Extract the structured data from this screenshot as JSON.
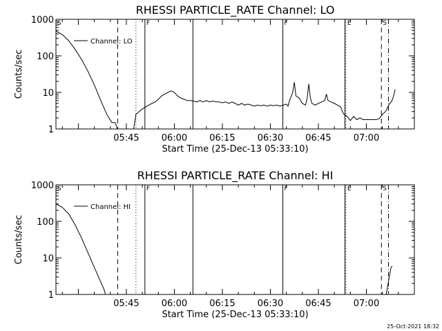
{
  "footer": {
    "timestamp": "25-Oct-2021 18:32"
  },
  "chart_data": [
    {
      "type": "line",
      "title": "RHESSI PARTICLE_RATE Channel: LO",
      "xlabel": "Start Time (25-Dec-13 05:33:10)",
      "ylabel": "Counts/sec",
      "yscale": "log",
      "xlim_min": [
        -10,
        102
      ],
      "ylim": [
        1,
        1000
      ],
      "xticks": [
        {
          "v": 12,
          "label": "05:45"
        },
        {
          "v": 27,
          "label": "06:00"
        },
        {
          "v": 42,
          "label": "06:15"
        },
        {
          "v": 57,
          "label": "06:30"
        },
        {
          "v": 72,
          "label": "06:45"
        },
        {
          "v": 87,
          "label": "07:00"
        }
      ],
      "yticks": [
        {
          "v": 1,
          "label": "1"
        },
        {
          "v": 10,
          "label": "10"
        },
        {
          "v": 100,
          "label": "100"
        },
        {
          "v": 1000,
          "label": "1000"
        }
      ],
      "legend": "top-left",
      "series": [
        {
          "name": "Channel: LO",
          "segments": [
            [
              [
                -10,
                480
              ],
              [
                -8,
                380
              ],
              [
                -6,
                260
              ],
              [
                -4,
                150
              ],
              [
                -2,
                80
              ],
              [
                0,
                38
              ],
              [
                2,
                16
              ],
              [
                4,
                6
              ],
              [
                6,
                2.4
              ],
              [
                7.5,
                1.5
              ],
              [
                8.5,
                1.5
              ],
              [
                9.2,
                1
              ]
            ],
            [
              [
                14.3,
                1
              ],
              [
                15,
                2.5
              ],
              [
                16,
                3
              ],
              [
                17,
                3.5
              ],
              [
                18,
                4
              ],
              [
                19,
                4.5
              ],
              [
                20,
                5
              ],
              [
                21,
                5.5
              ],
              [
                22,
                6.5
              ],
              [
                23,
                8
              ],
              [
                24,
                9
              ],
              [
                25,
                10
              ],
              [
                26,
                11
              ],
              [
                27,
                10
              ],
              [
                28,
                8
              ],
              [
                29,
                7
              ],
              [
                30,
                6.5
              ],
              [
                31,
                6
              ],
              [
                32,
                6
              ],
              [
                33,
                5.8
              ],
              [
                34,
                5.5
              ],
              [
                35,
                6
              ],
              [
                36,
                5.5
              ],
              [
                37,
                6
              ],
              [
                38,
                5.5
              ],
              [
                39,
                5.8
              ],
              [
                40,
                5.5
              ],
              [
                41,
                5.5
              ],
              [
                42,
                5.2
              ],
              [
                43,
                5.5
              ],
              [
                44,
                5
              ],
              [
                45,
                5.5
              ],
              [
                46,
                5
              ],
              [
                47,
                4.5
              ],
              [
                48,
                5
              ],
              [
                49,
                4.5
              ],
              [
                50,
                4.8
              ],
              [
                51,
                4.5
              ],
              [
                52,
                4.2
              ],
              [
                53,
                4.5
              ],
              [
                54,
                4.3
              ],
              [
                55,
                4.5
              ],
              [
                56,
                4.2
              ],
              [
                57,
                4.5
              ],
              [
                58,
                4.3
              ],
              [
                59,
                4.5
              ],
              [
                60,
                4.2
              ],
              [
                61,
                4.5
              ],
              [
                62,
                4.8
              ],
              [
                62.5,
                4.2
              ],
              [
                63,
                6
              ],
              [
                64,
                10
              ],
              [
                64.5,
                19
              ],
              [
                65,
                8
              ],
              [
                66,
                7
              ],
              [
                67,
                5
              ],
              [
                68,
                4.5
              ],
              [
                68.5,
                7
              ],
              [
                69,
                17
              ],
              [
                69.5,
                7
              ],
              [
                70,
                5
              ],
              [
                71,
                4.5
              ],
              [
                72,
                5
              ],
              [
                73,
                5.5
              ],
              [
                74,
                6
              ],
              [
                74.5,
                9
              ],
              [
                75,
                6
              ],
              [
                76,
                5.5
              ],
              [
                77,
                5
              ],
              [
                78,
                4.5
              ],
              [
                79,
                4
              ],
              [
                79.5,
                3
              ],
              [
                80,
                2.5
              ],
              [
                81,
                2.2
              ],
              [
                82,
                1.7
              ],
              [
                83,
                2.2
              ],
              [
                84,
                1.8
              ],
              [
                85,
                2
              ],
              [
                86,
                1.8
              ],
              [
                87,
                1.8
              ],
              [
                88,
                1.8
              ],
              [
                89,
                1.8
              ],
              [
                90,
                1.8
              ],
              [
                91,
                1.9
              ],
              [
                92,
                2.5
              ],
              [
                93,
                3
              ],
              [
                94,
                4.5
              ],
              [
                95,
                6
              ],
              [
                95.5,
                8
              ],
              [
                96,
                12
              ]
            ]
          ]
        }
      ],
      "markers": [
        {
          "x": -10,
          "style": "solid",
          "label": "S"
        },
        {
          "x": 9.3,
          "style": "dashed",
          "label": ""
        },
        {
          "x": 15,
          "style": "dotted",
          "label": ""
        },
        {
          "x": 17.8,
          "style": "solid",
          "label": "F"
        },
        {
          "x": 32.8,
          "style": "solid",
          "label": ""
        },
        {
          "x": 60.9,
          "style": "solid",
          "label": "F"
        },
        {
          "x": 80.3,
          "style": "solid",
          "label": ""
        },
        {
          "x": 80.6,
          "style": "dotted",
          "label": "E"
        },
        {
          "x": 91.7,
          "style": "dashed",
          "label": "S"
        },
        {
          "x": 93.9,
          "style": "dashdot",
          "label": ""
        }
      ]
    },
    {
      "type": "line",
      "title": "RHESSI PARTICLE_RATE Channel: HI",
      "xlabel": "Start Time (25-Dec-13 05:33:10)",
      "ylabel": "Counts/sec",
      "yscale": "log",
      "xlim_min": [
        -10,
        102
      ],
      "ylim": [
        1,
        1000
      ],
      "xticks": [
        {
          "v": 12,
          "label": "05:45"
        },
        {
          "v": 27,
          "label": "06:00"
        },
        {
          "v": 42,
          "label": "06:15"
        },
        {
          "v": 57,
          "label": "06:30"
        },
        {
          "v": 72,
          "label": "06:45"
        },
        {
          "v": 87,
          "label": "07:00"
        }
      ],
      "yticks": [
        {
          "v": 1,
          "label": "1"
        },
        {
          "v": 10,
          "label": "10"
        },
        {
          "v": 100,
          "label": "100"
        },
        {
          "v": 1000,
          "label": "1000"
        }
      ],
      "legend": "top-left",
      "series": [
        {
          "name": "Channel: HI",
          "segments": [
            [
              [
                -10,
                300
              ],
              [
                -8,
                240
              ],
              [
                -6,
                160
              ],
              [
                -4,
                80
              ],
              [
                -2,
                35
              ],
              [
                0,
                14
              ],
              [
                2,
                5.5
              ],
              [
                4,
                2.2
              ],
              [
                5,
                1.4
              ],
              [
                5.5,
                1
              ]
            ],
            [
              [
                93.2,
                1
              ],
              [
                93.8,
                2
              ],
              [
                94.3,
                3.5
              ],
              [
                94.7,
                5.5
              ],
              [
                95.1,
                6
              ]
            ]
          ]
        }
      ],
      "markers": [
        {
          "x": -10,
          "style": "solid",
          "label": "S"
        },
        {
          "x": 9.3,
          "style": "dashed",
          "label": ""
        },
        {
          "x": 15,
          "style": "dotted",
          "label": ""
        },
        {
          "x": 17.8,
          "style": "solid",
          "label": "F"
        },
        {
          "x": 32.8,
          "style": "solid",
          "label": ""
        },
        {
          "x": 60.9,
          "style": "solid",
          "label": "F"
        },
        {
          "x": 80.3,
          "style": "solid",
          "label": ""
        },
        {
          "x": 80.6,
          "style": "dotted",
          "label": "E"
        },
        {
          "x": 91.7,
          "style": "dashed",
          "label": "S"
        },
        {
          "x": 93.9,
          "style": "dashdot",
          "label": ""
        }
      ]
    }
  ]
}
